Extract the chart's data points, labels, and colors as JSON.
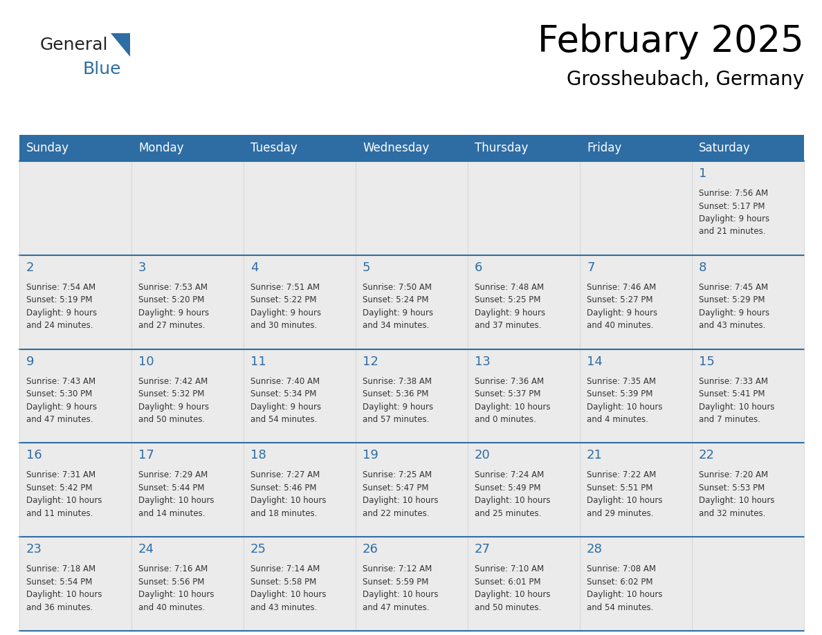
{
  "title": "February 2025",
  "subtitle": "Grossheubach, Germany",
  "header_bg": "#2E6DA4",
  "header_text_color": "#FFFFFF",
  "day_names": [
    "Sunday",
    "Monday",
    "Tuesday",
    "Wednesday",
    "Thursday",
    "Friday",
    "Saturday"
  ],
  "cell_bg": "#EBEBEB",
  "cell_border_top_color": "#2E6DA4",
  "cell_border_color": "#CCCCCC",
  "day_number_color": "#2E6DA4",
  "text_color": "#333333",
  "logo_general_color": "#222222",
  "logo_blue_color": "#2E6DA4",
  "title_fontsize": 38,
  "subtitle_fontsize": 20,
  "header_fontsize": 12,
  "day_num_fontsize": 13,
  "cell_text_fontsize": 8.5,
  "weeks": [
    [
      {
        "day": null,
        "text": ""
      },
      {
        "day": null,
        "text": ""
      },
      {
        "day": null,
        "text": ""
      },
      {
        "day": null,
        "text": ""
      },
      {
        "day": null,
        "text": ""
      },
      {
        "day": null,
        "text": ""
      },
      {
        "day": 1,
        "text": "Sunrise: 7:56 AM\nSunset: 5:17 PM\nDaylight: 9 hours\nand 21 minutes."
      }
    ],
    [
      {
        "day": 2,
        "text": "Sunrise: 7:54 AM\nSunset: 5:19 PM\nDaylight: 9 hours\nand 24 minutes."
      },
      {
        "day": 3,
        "text": "Sunrise: 7:53 AM\nSunset: 5:20 PM\nDaylight: 9 hours\nand 27 minutes."
      },
      {
        "day": 4,
        "text": "Sunrise: 7:51 AM\nSunset: 5:22 PM\nDaylight: 9 hours\nand 30 minutes."
      },
      {
        "day": 5,
        "text": "Sunrise: 7:50 AM\nSunset: 5:24 PM\nDaylight: 9 hours\nand 34 minutes."
      },
      {
        "day": 6,
        "text": "Sunrise: 7:48 AM\nSunset: 5:25 PM\nDaylight: 9 hours\nand 37 minutes."
      },
      {
        "day": 7,
        "text": "Sunrise: 7:46 AM\nSunset: 5:27 PM\nDaylight: 9 hours\nand 40 minutes."
      },
      {
        "day": 8,
        "text": "Sunrise: 7:45 AM\nSunset: 5:29 PM\nDaylight: 9 hours\nand 43 minutes."
      }
    ],
    [
      {
        "day": 9,
        "text": "Sunrise: 7:43 AM\nSunset: 5:30 PM\nDaylight: 9 hours\nand 47 minutes."
      },
      {
        "day": 10,
        "text": "Sunrise: 7:42 AM\nSunset: 5:32 PM\nDaylight: 9 hours\nand 50 minutes."
      },
      {
        "day": 11,
        "text": "Sunrise: 7:40 AM\nSunset: 5:34 PM\nDaylight: 9 hours\nand 54 minutes."
      },
      {
        "day": 12,
        "text": "Sunrise: 7:38 AM\nSunset: 5:36 PM\nDaylight: 9 hours\nand 57 minutes."
      },
      {
        "day": 13,
        "text": "Sunrise: 7:36 AM\nSunset: 5:37 PM\nDaylight: 10 hours\nand 0 minutes."
      },
      {
        "day": 14,
        "text": "Sunrise: 7:35 AM\nSunset: 5:39 PM\nDaylight: 10 hours\nand 4 minutes."
      },
      {
        "day": 15,
        "text": "Sunrise: 7:33 AM\nSunset: 5:41 PM\nDaylight: 10 hours\nand 7 minutes."
      }
    ],
    [
      {
        "day": 16,
        "text": "Sunrise: 7:31 AM\nSunset: 5:42 PM\nDaylight: 10 hours\nand 11 minutes."
      },
      {
        "day": 17,
        "text": "Sunrise: 7:29 AM\nSunset: 5:44 PM\nDaylight: 10 hours\nand 14 minutes."
      },
      {
        "day": 18,
        "text": "Sunrise: 7:27 AM\nSunset: 5:46 PM\nDaylight: 10 hours\nand 18 minutes."
      },
      {
        "day": 19,
        "text": "Sunrise: 7:25 AM\nSunset: 5:47 PM\nDaylight: 10 hours\nand 22 minutes."
      },
      {
        "day": 20,
        "text": "Sunrise: 7:24 AM\nSunset: 5:49 PM\nDaylight: 10 hours\nand 25 minutes."
      },
      {
        "day": 21,
        "text": "Sunrise: 7:22 AM\nSunset: 5:51 PM\nDaylight: 10 hours\nand 29 minutes."
      },
      {
        "day": 22,
        "text": "Sunrise: 7:20 AM\nSunset: 5:53 PM\nDaylight: 10 hours\nand 32 minutes."
      }
    ],
    [
      {
        "day": 23,
        "text": "Sunrise: 7:18 AM\nSunset: 5:54 PM\nDaylight: 10 hours\nand 36 minutes."
      },
      {
        "day": 24,
        "text": "Sunrise: 7:16 AM\nSunset: 5:56 PM\nDaylight: 10 hours\nand 40 minutes."
      },
      {
        "day": 25,
        "text": "Sunrise: 7:14 AM\nSunset: 5:58 PM\nDaylight: 10 hours\nand 43 minutes."
      },
      {
        "day": 26,
        "text": "Sunrise: 7:12 AM\nSunset: 5:59 PM\nDaylight: 10 hours\nand 47 minutes."
      },
      {
        "day": 27,
        "text": "Sunrise: 7:10 AM\nSunset: 6:01 PM\nDaylight: 10 hours\nand 50 minutes."
      },
      {
        "day": 28,
        "text": "Sunrise: 7:08 AM\nSunset: 6:02 PM\nDaylight: 10 hours\nand 54 minutes."
      },
      {
        "day": null,
        "text": ""
      }
    ]
  ]
}
